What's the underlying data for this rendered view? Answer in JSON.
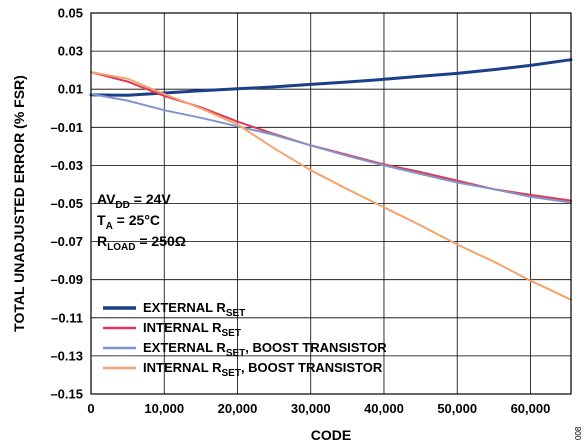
{
  "chart_data": {
    "type": "line",
    "title": "",
    "xlabel": "CODE",
    "ylabel": "TOTAL UNADJUSTED ERROR (% FSR)",
    "xlim": [
      0,
      65535
    ],
    "ylim": [
      -0.15,
      0.05
    ],
    "grid": true,
    "xticks": [
      "0",
      "10,000",
      "20,000",
      "30,000",
      "40,000",
      "50,000",
      "60,000"
    ],
    "xtick_values": [
      0,
      10000,
      20000,
      30000,
      40000,
      50000,
      60000
    ],
    "yticks": [
      "0.05",
      "0.03",
      "0.01",
      "–0.01",
      "–0.03",
      "–0.05",
      "–0.07",
      "–0.09",
      "–0.11",
      "–0.13",
      "–0.15"
    ],
    "ytick_values": [
      0.05,
      0.03,
      0.01,
      -0.01,
      -0.03,
      -0.05,
      -0.07,
      -0.09,
      -0.11,
      -0.13,
      -0.15
    ],
    "legend_position": "bottom-left",
    "annotation": {
      "line1": {
        "main": "AV",
        "sub": "DD",
        "rest": " = 24V"
      },
      "line2": {
        "main": "T",
        "sub": "A",
        "rest": " = 25°C"
      },
      "line3": {
        "main": "R",
        "sub": "LOAD",
        "rest": " = 250Ω"
      }
    },
    "figure_code": "008",
    "series": [
      {
        "name": {
          "main": "EXTERNAL R",
          "sub": "SET",
          "rest": ""
        },
        "color": "#1c3f8a",
        "width": 3,
        "x": [
          0,
          5000,
          10000,
          15000,
          20000,
          25000,
          30000,
          35000,
          40000,
          45000,
          50000,
          55000,
          60000,
          65535
        ],
        "y": [
          0.007,
          0.0068,
          0.008,
          0.0092,
          0.0102,
          0.0112,
          0.0125,
          0.0138,
          0.0152,
          0.0168,
          0.0183,
          0.0203,
          0.0225,
          0.0255
        ]
      },
      {
        "name": {
          "main": "INTERNAL R",
          "sub": "SET",
          "rest": ""
        },
        "color": "#e0385a",
        "width": 2,
        "x": [
          0,
          5000,
          10000,
          15000,
          20000,
          25000,
          30000,
          35000,
          40000,
          45000,
          50000,
          55000,
          60000,
          65535
        ],
        "y": [
          0.019,
          0.014,
          0.0065,
          0.0005,
          -0.007,
          -0.0135,
          -0.0195,
          -0.0245,
          -0.0295,
          -0.0335,
          -0.038,
          -0.0425,
          -0.0455,
          -0.0485
        ]
      },
      {
        "name": {
          "main": "EXTERNAL R",
          "sub": "SET",
          "rest": ", BOOST TRANSISTOR"
        },
        "color": "#7f97c8",
        "width": 2,
        "x": [
          0,
          5000,
          10000,
          15000,
          20000,
          25000,
          30000,
          35000,
          40000,
          45000,
          50000,
          55000,
          60000,
          65535
        ],
        "y": [
          0.0075,
          0.004,
          -0.001,
          -0.005,
          -0.0095,
          -0.014,
          -0.0195,
          -0.025,
          -0.03,
          -0.0345,
          -0.039,
          -0.0425,
          -0.0465,
          -0.0495
        ]
      },
      {
        "name": {
          "main": "INTERNAL R",
          "sub": "SET",
          "rest": ", BOOST TRANSISTOR"
        },
        "color": "#f4a36e",
        "width": 2,
        "x": [
          0,
          5000,
          10000,
          15000,
          20000,
          25000,
          30000,
          35000,
          40000,
          45000,
          50000,
          55000,
          60000,
          65535
        ],
        "y": [
          0.019,
          0.0155,
          0.0075,
          0.0,
          -0.0085,
          -0.021,
          -0.0325,
          -0.0425,
          -0.052,
          -0.0615,
          -0.0715,
          -0.0805,
          -0.0905,
          -0.1005
        ]
      }
    ]
  }
}
